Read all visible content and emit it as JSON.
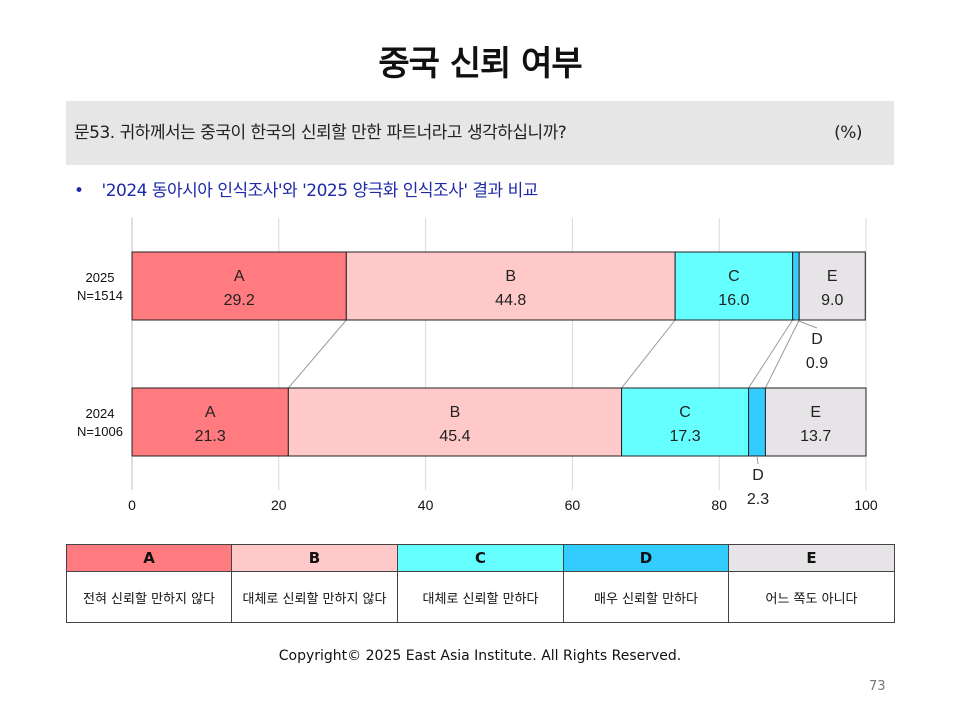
{
  "title": "중국 신뢰 여부",
  "question": {
    "text": "문53. 귀하께서는 중국이 한국의 신뢰할 만한 파트너라고 생각하십니까?",
    "unit": "(%)"
  },
  "bullet": {
    "symbol": "•",
    "text": "'2024 동아시아 인식조사'와 '2025 양극화 인식조사' 결과 비교"
  },
  "chart_data": {
    "type": "bar",
    "orientation": "horizontal",
    "stacked": true,
    "xlim": [
      0,
      100
    ],
    "xticks": [
      0,
      20,
      40,
      60,
      80,
      100
    ],
    "grid": true,
    "categories": [
      {
        "line1": "2025",
        "line2": "N=1514"
      },
      {
        "line1": "2024",
        "line2": "N=1006"
      }
    ],
    "series": [
      {
        "name": "A",
        "color": "#ff7b7f",
        "values": [
          29.2,
          21.3
        ]
      },
      {
        "name": "B",
        "color": "#ffc9c9",
        "values": [
          44.8,
          45.4
        ]
      },
      {
        "name": "C",
        "color": "#66ffff",
        "values": [
          16.0,
          17.3
        ]
      },
      {
        "name": "D",
        "color": "#33ccff",
        "values": [
          0.9,
          2.3
        ]
      },
      {
        "name": "E",
        "color": "#e6e4e6",
        "values": [
          9.0,
          13.7
        ]
      }
    ]
  },
  "legend": {
    "codes": [
      "A",
      "B",
      "C",
      "D",
      "E"
    ],
    "colors": [
      "#ff7b7f",
      "#ffc9c9",
      "#66ffff",
      "#33ccff",
      "#e6e4e6"
    ],
    "labels": [
      "전혀 신뢰할 만하지 않다",
      "대체로 신뢰할 만하지 않다",
      "대체로 신뢰할 만하다",
      "매우 신뢰할 만하다",
      "어느 쪽도 아니다"
    ]
  },
  "footer": {
    "copyright": "Copyright© 2025 East Asia Institute. All Rights Reserved.",
    "page_number": "73"
  }
}
